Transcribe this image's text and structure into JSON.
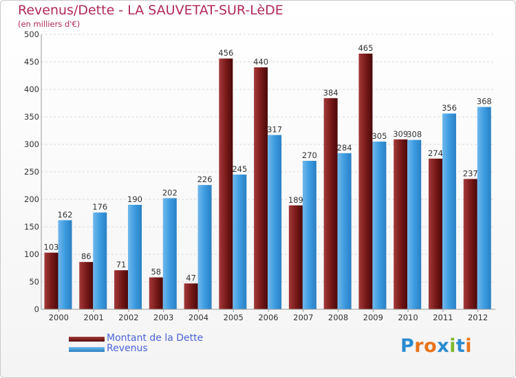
{
  "header": {
    "title": "Revenus/Dette - LA SAUVETAT-SUR-LèDE",
    "subtitle": "(en milliers d'€)"
  },
  "colors": {
    "title": "#b0285a",
    "legend_text": "#4a64d8",
    "dette": "#7a1a1a",
    "revenus": "#3d9be0"
  },
  "logo": {
    "letters": [
      "P",
      "r",
      "o",
      "x",
      "i",
      "t",
      "i"
    ],
    "colors": [
      "#2a8bd0",
      "#e8731a",
      "#e8731a",
      "#2a8bd0",
      "#7fb82e",
      "#2a8bd0",
      "#e8731a"
    ]
  },
  "chart_data": {
    "type": "bar",
    "title": "Revenus/Dette - LA SAUVETAT-SUR-LèDE",
    "subtitle": "(en milliers d'€)",
    "categories": [
      "2000",
      "2001",
      "2002",
      "2003",
      "2004",
      "2005",
      "2006",
      "2007",
      "2008",
      "2009",
      "2010",
      "2011",
      "2012"
    ],
    "series": [
      {
        "name": "Montant de la Dette",
        "color": "#7a1a1a",
        "values": [
          103,
          86,
          71,
          58,
          47,
          456,
          440,
          189,
          384,
          465,
          309,
          274,
          237
        ]
      },
      {
        "name": "Revenus",
        "color": "#3d9be0",
        "values": [
          162,
          176,
          190,
          202,
          226,
          245,
          317,
          270,
          284,
          305,
          308,
          356,
          368
        ]
      }
    ],
    "ylim": [
      0,
      500
    ],
    "yticks": [
      0,
      50,
      100,
      150,
      200,
      250,
      300,
      350,
      400,
      450,
      500
    ],
    "grid": true,
    "legend": "bottom-left"
  }
}
